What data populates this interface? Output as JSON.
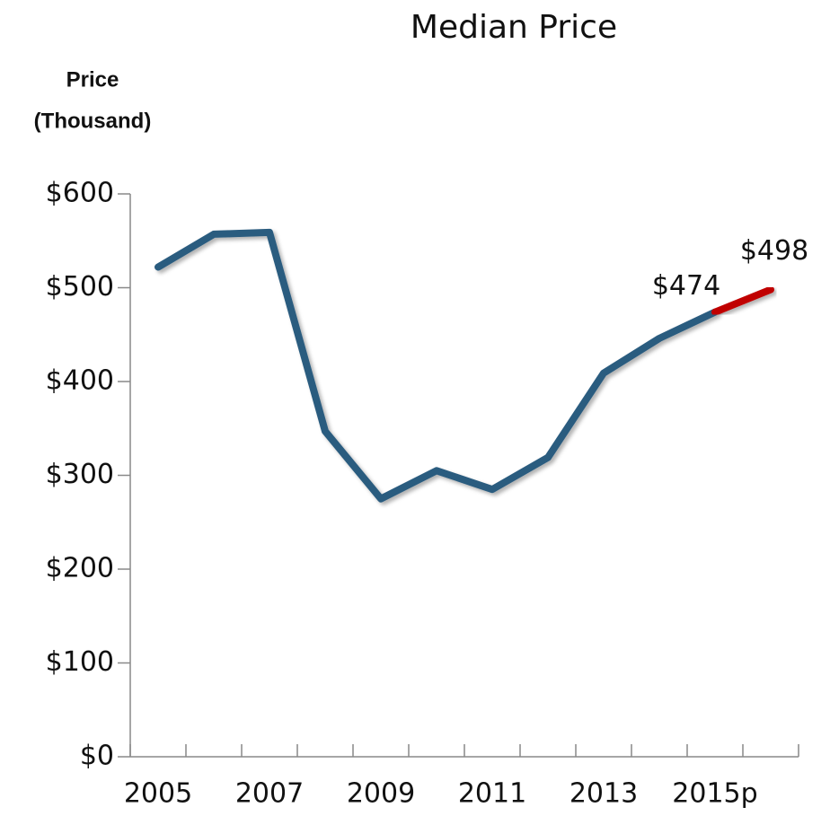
{
  "chart_data": {
    "type": "line",
    "title": "Median Price",
    "y_label": [
      "Price",
      "(Thousand)"
    ],
    "categories": [
      "2005",
      null,
      "2007",
      null,
      "2009",
      null,
      "2011",
      null,
      "2013",
      null,
      "2015p",
      null
    ],
    "series": [
      {
        "color": "#2a5b7f",
        "forecast_color": "#c00000",
        "forecast_start": 10,
        "values": [
          522,
          557,
          559,
          347,
          275,
          305,
          285,
          319,
          409,
          446,
          474,
          498
        ],
        "value_labels": [
          null,
          null,
          null,
          null,
          null,
          null,
          null,
          null,
          null,
          null,
          "$474",
          "$498"
        ]
      }
    ],
    "ylim": [
      0,
      600
    ],
    "yticks": [
      {
        "value": 0,
        "label": "$0"
      },
      {
        "value": 100,
        "label": "$100"
      },
      {
        "value": 200,
        "label": "$200"
      },
      {
        "value": 300,
        "label": "$300"
      },
      {
        "value": 400,
        "label": "$400"
      },
      {
        "value": 500,
        "label": "$500"
      },
      {
        "value": 600,
        "label": "$600"
      }
    ]
  }
}
